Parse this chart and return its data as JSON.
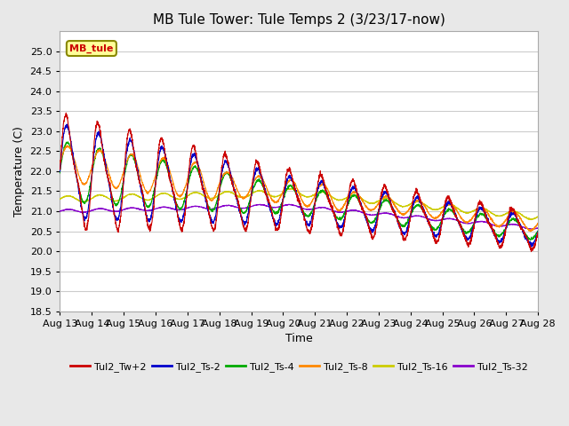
{
  "title": "MB Tule Tower: Tule Temps 2 (3/23/17-now)",
  "xlabel": "Time",
  "ylabel": "Temperature (C)",
  "ylim": [
    18.5,
    25.5
  ],
  "yticks": [
    18.5,
    19.0,
    19.5,
    20.0,
    20.5,
    21.0,
    21.5,
    22.0,
    22.5,
    23.0,
    23.5,
    24.0,
    24.5,
    25.0
  ],
  "xlim": [
    0,
    15
  ],
  "xtick_labels": [
    "Aug 13",
    "Aug 14",
    "Aug 15",
    "Aug 16",
    "Aug 17",
    "Aug 18",
    "Aug 19",
    "Aug 20",
    "Aug 21",
    "Aug 22",
    "Aug 23",
    "Aug 24",
    "Aug 25",
    "Aug 26",
    "Aug 27",
    "Aug 28"
  ],
  "legend_label": "MB_tule",
  "series_labels": [
    "Tul2_Tw+2",
    "Tul2_Ts-2",
    "Tul2_Ts-4",
    "Tul2_Ts-8",
    "Tul2_Ts-16",
    "Tul2_Ts-32"
  ],
  "series_colors": [
    "#cc0000",
    "#0000cc",
    "#00aa00",
    "#ff8800",
    "#cccc00",
    "#8800cc"
  ],
  "background_color": "#e8e8e8",
  "plot_background": "#ffffff",
  "grid_color": "#cccccc",
  "title_fontsize": 11,
  "axis_fontsize": 9,
  "tick_fontsize": 8,
  "legend_box_color": "#ffff99",
  "legend_box_edge": "#888800",
  "legend_box_text": "#cc0000"
}
